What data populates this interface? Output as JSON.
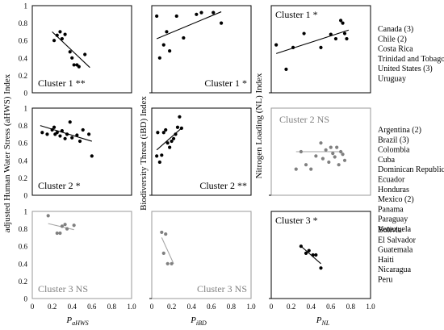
{
  "figure": {
    "y_axis_titles": [
      "adjusted Human Water Stress (aHWS) Index",
      "Biodiversity Threat (iBD) Index",
      "Nitrogen Loading (NL) Index"
    ],
    "x_axis_titles": [
      {
        "main": "P",
        "sub": "aHWS"
      },
      {
        "main": "P",
        "sub": "iBD"
      },
      {
        "main": "P",
        "sub": "NL"
      }
    ],
    "y_tick_labels": [
      "0",
      "0.2",
      "0.4",
      "0.6",
      "0.8",
      "1"
    ],
    "x_tick_labels": [
      "0",
      "0.2",
      "0.4",
      "0.6",
      "0.8",
      "1.0"
    ],
    "cluster_country_lists": [
      [
        "Canada (3)",
        "Chile (2)",
        "Costa Rica",
        "Trinidad and Tobago",
        "United States (3)",
        "Uruguay"
      ],
      [
        "Argentina (2)",
        "Brazil (3)",
        "Colombia",
        "Cuba",
        "Dominican Republic",
        "Ecuador",
        "Honduras",
        "Mexico (2)",
        "Panama",
        "Paraguay",
        "Venezuela"
      ],
      [
        "Bolivia",
        "El Salvador",
        "Guatemala",
        "Haiti",
        "Nicaragua",
        "Peru"
      ]
    ],
    "colors": {
      "significant": "#000000",
      "not_significant": "#808080",
      "trend_ns": "#a6a6a6"
    }
  },
  "chart_data": [
    {
      "type": "scatter",
      "cluster": 1,
      "index": "aHWS",
      "label": "Cluster 1 **",
      "significant": true,
      "xlim": [
        0,
        1
      ],
      "ylim": [
        0,
        1
      ],
      "points": [
        [
          0.22,
          0.6
        ],
        [
          0.25,
          0.66
        ],
        [
          0.28,
          0.7
        ],
        [
          0.3,
          0.62
        ],
        [
          0.33,
          0.67
        ],
        [
          0.38,
          0.47
        ],
        [
          0.4,
          0.4
        ],
        [
          0.42,
          0.32
        ],
        [
          0.45,
          0.32
        ],
        [
          0.47,
          0.3
        ],
        [
          0.53,
          0.44
        ]
      ],
      "trend": [
        [
          0.2,
          0.7
        ],
        [
          0.58,
          0.29
        ]
      ]
    },
    {
      "type": "scatter",
      "cluster": 1,
      "index": "iBD",
      "label": "Cluster 1 *",
      "significant": true,
      "xlim": [
        0,
        1
      ],
      "ylim": [
        0,
        1
      ],
      "points": [
        [
          0.05,
          0.88
        ],
        [
          0.08,
          0.4
        ],
        [
          0.12,
          0.55
        ],
        [
          0.15,
          0.7
        ],
        [
          0.18,
          0.48
        ],
        [
          0.25,
          0.88
        ],
        [
          0.32,
          0.63
        ],
        [
          0.45,
          0.9
        ],
        [
          0.5,
          0.92
        ],
        [
          0.62,
          0.92
        ],
        [
          0.7,
          0.8
        ]
      ],
      "trend": [
        [
          0.05,
          0.62
        ],
        [
          0.7,
          0.93
        ]
      ]
    },
    {
      "type": "scatter",
      "cluster": 1,
      "index": "NL",
      "label": "Cluster 1 *",
      "significant": true,
      "xlim": [
        0,
        1
      ],
      "ylim": [
        0,
        1
      ],
      "points": [
        [
          0.05,
          0.55
        ],
        [
          0.15,
          0.27
        ],
        [
          0.22,
          0.52
        ],
        [
          0.33,
          0.68
        ],
        [
          0.5,
          0.52
        ],
        [
          0.6,
          0.67
        ],
        [
          0.65,
          0.62
        ],
        [
          0.7,
          0.83
        ],
        [
          0.72,
          0.8
        ],
        [
          0.74,
          0.68
        ],
        [
          0.76,
          0.62
        ]
      ],
      "trend": [
        [
          0.05,
          0.45
        ],
        [
          0.78,
          0.72
        ]
      ]
    },
    {
      "type": "scatter",
      "cluster": 2,
      "index": "aHWS",
      "label": "Cluster 2 *",
      "significant": true,
      "xlim": [
        0,
        1
      ],
      "ylim": [
        0,
        1
      ],
      "points": [
        [
          0.1,
          0.72
        ],
        [
          0.15,
          0.7
        ],
        [
          0.2,
          0.75
        ],
        [
          0.22,
          0.78
        ],
        [
          0.23,
          0.7
        ],
        [
          0.25,
          0.72
        ],
        [
          0.28,
          0.68
        ],
        [
          0.3,
          0.74
        ],
        [
          0.33,
          0.65
        ],
        [
          0.35,
          0.7
        ],
        [
          0.38,
          0.84
        ],
        [
          0.4,
          0.66
        ],
        [
          0.45,
          0.69
        ],
        [
          0.48,
          0.62
        ],
        [
          0.51,
          0.75
        ],
        [
          0.57,
          0.7
        ],
        [
          0.6,
          0.45
        ]
      ],
      "trend": [
        [
          0.08,
          0.8
        ],
        [
          0.6,
          0.62
        ]
      ]
    },
    {
      "type": "scatter",
      "cluster": 2,
      "index": "iBD",
      "label": "Cluster 2 **",
      "significant": true,
      "xlim": [
        0,
        1
      ],
      "ylim": [
        0,
        1
      ],
      "points": [
        [
          0.05,
          0.45
        ],
        [
          0.06,
          0.72
        ],
        [
          0.08,
          0.38
        ],
        [
          0.1,
          0.46
        ],
        [
          0.12,
          0.72
        ],
        [
          0.14,
          0.75
        ],
        [
          0.16,
          0.6
        ],
        [
          0.18,
          0.55
        ],
        [
          0.2,
          0.62
        ],
        [
          0.22,
          0.65
        ],
        [
          0.24,
          0.7
        ],
        [
          0.26,
          0.78
        ],
        [
          0.28,
          0.9
        ],
        [
          0.3,
          0.77
        ]
      ],
      "trend": [
        [
          0.05,
          0.52
        ],
        [
          0.3,
          0.77
        ]
      ]
    },
    {
      "type": "scatter",
      "cluster": 2,
      "index": "NL",
      "label": "Cluster 2 NS",
      "significant": false,
      "xlim": [
        0,
        1
      ],
      "ylim": [
        0,
        1
      ],
      "points": [
        [
          0.25,
          0.3
        ],
        [
          0.3,
          0.5
        ],
        [
          0.35,
          0.35
        ],
        [
          0.4,
          0.3
        ],
        [
          0.45,
          0.45
        ],
        [
          0.5,
          0.6
        ],
        [
          0.52,
          0.42
        ],
        [
          0.55,
          0.52
        ],
        [
          0.58,
          0.38
        ],
        [
          0.6,
          0.55
        ],
        [
          0.62,
          0.48
        ],
        [
          0.64,
          0.44
        ],
        [
          0.66,
          0.55
        ],
        [
          0.68,
          0.35
        ],
        [
          0.7,
          0.5
        ],
        [
          0.72,
          0.47
        ],
        [
          0.74,
          0.4
        ]
      ],
      "trend": [
        [
          0.25,
          0.5
        ],
        [
          0.72,
          0.5
        ]
      ]
    },
    {
      "type": "scatter",
      "cluster": 3,
      "index": "aHWS",
      "label": "Cluster 3 NS",
      "significant": false,
      "xlim": [
        0,
        1
      ],
      "ylim": [
        0,
        1
      ],
      "points": [
        [
          0.16,
          0.95
        ],
        [
          0.25,
          0.75
        ],
        [
          0.28,
          0.75
        ],
        [
          0.3,
          0.83
        ],
        [
          0.33,
          0.85
        ],
        [
          0.35,
          0.8
        ],
        [
          0.42,
          0.84
        ]
      ],
      "trend": [
        [
          0.16,
          0.86
        ],
        [
          0.42,
          0.79
        ]
      ]
    },
    {
      "type": "scatter",
      "cluster": 3,
      "index": "iBD",
      "label": "Cluster 3 NS",
      "significant": false,
      "xlim": [
        0,
        1
      ],
      "ylim": [
        0,
        1
      ],
      "points": [
        [
          0.1,
          0.76
        ],
        [
          0.12,
          0.52
        ],
        [
          0.14,
          0.74
        ],
        [
          0.16,
          0.4
        ],
        [
          0.2,
          0.4
        ]
      ],
      "trend": [
        [
          0.1,
          0.7
        ],
        [
          0.22,
          0.4
        ]
      ]
    },
    {
      "type": "scatter",
      "cluster": 3,
      "index": "NL",
      "label": "Cluster 3 *",
      "significant": true,
      "xlim": [
        0,
        1
      ],
      "ylim": [
        0,
        1
      ],
      "points": [
        [
          0.3,
          0.6
        ],
        [
          0.35,
          0.52
        ],
        [
          0.38,
          0.55
        ],
        [
          0.42,
          0.5
        ],
        [
          0.45,
          0.5
        ],
        [
          0.5,
          0.35
        ]
      ],
      "trend": [
        [
          0.3,
          0.6
        ],
        [
          0.5,
          0.4
        ]
      ]
    }
  ]
}
